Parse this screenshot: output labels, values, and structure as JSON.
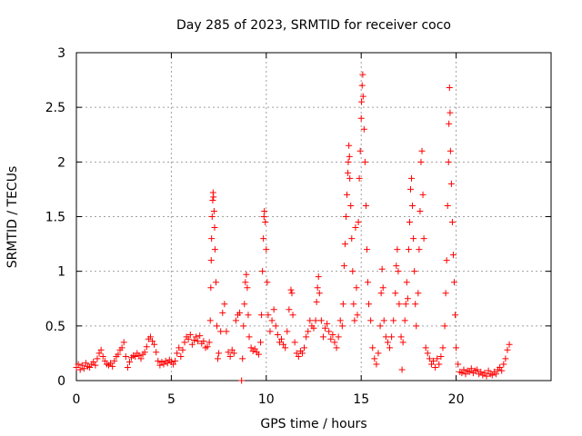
{
  "chart_data": {
    "type": "scatter",
    "title": "Day 285 of 2023, SRMTID for receiver coco",
    "xlabel": "GPS time / hours",
    "ylabel": "SRMTID / TECUs",
    "xlim": [
      0,
      25
    ],
    "ylim": [
      0,
      3
    ],
    "xticks": [
      0,
      5,
      10,
      15,
      20
    ],
    "yticks": [
      0,
      0.5,
      1,
      1.5,
      2,
      2.5,
      3
    ],
    "xtick_labels": [
      "0",
      "5",
      "10",
      "15",
      "20"
    ],
    "ytick_labels": [
      "0",
      "0.5",
      "1",
      "1.5",
      "2",
      "2.5",
      "3"
    ],
    "grid": true,
    "marker": "plus",
    "color": "#ff0000",
    "series": [
      {
        "name": "SRMTID",
        "points": [
          [
            0.0,
            0.12
          ],
          [
            0.1,
            0.15
          ],
          [
            0.2,
            0.1
          ],
          [
            0.3,
            0.14
          ],
          [
            0.4,
            0.11
          ],
          [
            0.5,
            0.16
          ],
          [
            0.6,
            0.13
          ],
          [
            0.7,
            0.12
          ],
          [
            0.8,
            0.15
          ],
          [
            0.9,
            0.17
          ],
          [
            1.0,
            0.14
          ],
          [
            1.1,
            0.2
          ],
          [
            1.2,
            0.25
          ],
          [
            1.3,
            0.28
          ],
          [
            1.4,
            0.22
          ],
          [
            1.5,
            0.18
          ],
          [
            1.6,
            0.15
          ],
          [
            1.7,
            0.14
          ],
          [
            1.8,
            0.16
          ],
          [
            1.9,
            0.13
          ],
          [
            2.0,
            0.18
          ],
          [
            2.1,
            0.22
          ],
          [
            2.2,
            0.24
          ],
          [
            2.3,
            0.28
          ],
          [
            2.4,
            0.3
          ],
          [
            2.5,
            0.35
          ],
          [
            2.6,
            0.22
          ],
          [
            2.7,
            0.12
          ],
          [
            2.8,
            0.17
          ],
          [
            2.9,
            0.21
          ],
          [
            3.0,
            0.23
          ],
          [
            3.1,
            0.22
          ],
          [
            3.2,
            0.25
          ],
          [
            3.3,
            0.23
          ],
          [
            3.4,
            0.2
          ],
          [
            3.5,
            0.24
          ],
          [
            3.6,
            0.26
          ],
          [
            3.7,
            0.31
          ],
          [
            3.8,
            0.38
          ],
          [
            3.9,
            0.4
          ],
          [
            4.0,
            0.36
          ],
          [
            4.1,
            0.33
          ],
          [
            4.2,
            0.26
          ],
          [
            4.3,
            0.18
          ],
          [
            4.4,
            0.14
          ],
          [
            4.5,
            0.17
          ],
          [
            4.6,
            0.15
          ],
          [
            4.7,
            0.18
          ],
          [
            4.8,
            0.16
          ],
          [
            4.9,
            0.19
          ],
          [
            5.0,
            0.17
          ],
          [
            5.1,
            0.15
          ],
          [
            5.2,
            0.18
          ],
          [
            5.3,
            0.25
          ],
          [
            5.4,
            0.3
          ],
          [
            5.5,
            0.22
          ],
          [
            5.6,
            0.28
          ],
          [
            5.7,
            0.35
          ],
          [
            5.8,
            0.4
          ],
          [
            5.9,
            0.38
          ],
          [
            6.0,
            0.42
          ],
          [
            6.1,
            0.33
          ],
          [
            6.2,
            0.37
          ],
          [
            6.3,
            0.4
          ],
          [
            6.4,
            0.36
          ],
          [
            6.5,
            0.41
          ],
          [
            6.6,
            0.34
          ],
          [
            6.7,
            0.36
          ],
          [
            6.8,
            0.3
          ],
          [
            6.9,
            0.31
          ],
          [
            7.0,
            0.35
          ],
          [
            7.05,
            0.55
          ],
          [
            7.08,
            0.85
          ],
          [
            7.1,
            1.1
          ],
          [
            7.12,
            1.3
          ],
          [
            7.15,
            1.5
          ],
          [
            7.18,
            1.65
          ],
          [
            7.2,
            1.72
          ],
          [
            7.22,
            1.68
          ],
          [
            7.25,
            1.55
          ],
          [
            7.28,
            1.4
          ],
          [
            7.3,
            1.2
          ],
          [
            7.35,
            0.9
          ],
          [
            7.4,
            0.5
          ],
          [
            7.45,
            0.2
          ],
          [
            7.5,
            0.25
          ],
          [
            7.6,
            0.45
          ],
          [
            7.7,
            0.62
          ],
          [
            7.8,
            0.7
          ],
          [
            7.9,
            0.45
          ],
          [
            8.0,
            0.26
          ],
          [
            8.1,
            0.22
          ],
          [
            8.2,
            0.28
          ],
          [
            8.3,
            0.25
          ],
          [
            8.4,
            0.55
          ],
          [
            8.5,
            0.6
          ],
          [
            8.6,
            0.62
          ],
          [
            8.7,
            0.0
          ],
          [
            8.75,
            0.2
          ],
          [
            8.8,
            0.5
          ],
          [
            8.85,
            0.7
          ],
          [
            8.9,
            0.9
          ],
          [
            8.95,
            0.97
          ],
          [
            9.0,
            0.85
          ],
          [
            9.05,
            0.6
          ],
          [
            9.1,
            0.4
          ],
          [
            9.2,
            0.3
          ],
          [
            9.3,
            0.27
          ],
          [
            9.4,
            0.29
          ],
          [
            9.5,
            0.26
          ],
          [
            9.6,
            0.24
          ],
          [
            9.7,
            0.35
          ],
          [
            9.75,
            0.6
          ],
          [
            9.8,
            1.0
          ],
          [
            9.85,
            1.3
          ],
          [
            9.88,
            1.5
          ],
          [
            9.9,
            1.55
          ],
          [
            9.95,
            1.45
          ],
          [
            10.0,
            1.2
          ],
          [
            10.05,
            0.9
          ],
          [
            10.1,
            0.6
          ],
          [
            10.2,
            0.45
          ],
          [
            10.3,
            0.55
          ],
          [
            10.4,
            0.65
          ],
          [
            10.5,
            0.5
          ],
          [
            10.6,
            0.42
          ],
          [
            10.7,
            0.35
          ],
          [
            10.8,
            0.38
          ],
          [
            10.9,
            0.33
          ],
          [
            11.0,
            0.3
          ],
          [
            11.1,
            0.45
          ],
          [
            11.2,
            0.65
          ],
          [
            11.3,
            0.83
          ],
          [
            11.35,
            0.8
          ],
          [
            11.4,
            0.6
          ],
          [
            11.5,
            0.35
          ],
          [
            11.6,
            0.25
          ],
          [
            11.7,
            0.22
          ],
          [
            11.8,
            0.27
          ],
          [
            11.9,
            0.25
          ],
          [
            12.0,
            0.3
          ],
          [
            12.1,
            0.4
          ],
          [
            12.2,
            0.45
          ],
          [
            12.3,
            0.55
          ],
          [
            12.4,
            0.5
          ],
          [
            12.5,
            0.48
          ],
          [
            12.6,
            0.55
          ],
          [
            12.65,
            0.72
          ],
          [
            12.7,
            0.85
          ],
          [
            12.75,
            0.95
          ],
          [
            12.8,
            0.8
          ],
          [
            12.9,
            0.55
          ],
          [
            13.0,
            0.4
          ],
          [
            13.1,
            0.48
          ],
          [
            13.2,
            0.52
          ],
          [
            13.3,
            0.45
          ],
          [
            13.4,
            0.38
          ],
          [
            13.5,
            0.42
          ],
          [
            13.6,
            0.35
          ],
          [
            13.7,
            0.3
          ],
          [
            13.8,
            0.4
          ],
          [
            13.9,
            0.55
          ],
          [
            14.0,
            0.5
          ],
          [
            14.05,
            0.7
          ],
          [
            14.1,
            1.05
          ],
          [
            14.15,
            1.25
          ],
          [
            14.2,
            1.5
          ],
          [
            14.25,
            1.7
          ],
          [
            14.3,
            1.9
          ],
          [
            14.32,
            2.0
          ],
          [
            14.35,
            2.15
          ],
          [
            14.38,
            2.05
          ],
          [
            14.4,
            1.85
          ],
          [
            14.45,
            1.6
          ],
          [
            14.5,
            1.3
          ],
          [
            14.55,
            1.0
          ],
          [
            14.6,
            0.7
          ],
          [
            14.65,
            0.55
          ],
          [
            14.7,
            1.4
          ],
          [
            14.75,
            0.85
          ],
          [
            14.8,
            0.6
          ],
          [
            14.85,
            1.45
          ],
          [
            14.9,
            1.85
          ],
          [
            14.95,
            2.1
          ],
          [
            15.0,
            2.4
          ],
          [
            15.02,
            2.55
          ],
          [
            15.05,
            2.7
          ],
          [
            15.08,
            2.8
          ],
          [
            15.1,
            2.6
          ],
          [
            15.15,
            2.3
          ],
          [
            15.2,
            2.0
          ],
          [
            15.25,
            1.6
          ],
          [
            15.3,
            1.2
          ],
          [
            15.35,
            0.9
          ],
          [
            15.4,
            0.7
          ],
          [
            15.5,
            0.55
          ],
          [
            15.6,
            0.3
          ],
          [
            15.7,
            0.2
          ],
          [
            15.8,
            0.15
          ],
          [
            15.9,
            0.25
          ],
          [
            16.0,
            0.5
          ],
          [
            16.05,
            0.8
          ],
          [
            16.1,
            1.02
          ],
          [
            16.15,
            0.85
          ],
          [
            16.2,
            0.55
          ],
          [
            16.3,
            0.4
          ],
          [
            16.4,
            0.35
          ],
          [
            16.5,
            0.3
          ],
          [
            16.6,
            0.4
          ],
          [
            16.7,
            0.55
          ],
          [
            16.8,
            0.8
          ],
          [
            16.85,
            1.05
          ],
          [
            16.9,
            1.2
          ],
          [
            16.95,
            1.0
          ],
          [
            17.0,
            0.7
          ],
          [
            17.1,
            0.4
          ],
          [
            17.15,
            0.1
          ],
          [
            17.2,
            0.35
          ],
          [
            17.3,
            0.55
          ],
          [
            17.35,
            0.7
          ],
          [
            17.4,
            0.9
          ],
          [
            17.45,
            0.75
          ],
          [
            17.5,
            1.2
          ],
          [
            17.55,
            1.45
          ],
          [
            17.6,
            1.75
          ],
          [
            17.65,
            1.85
          ],
          [
            17.7,
            1.6
          ],
          [
            17.75,
            1.3
          ],
          [
            17.8,
            1.0
          ],
          [
            17.85,
            0.7
          ],
          [
            17.9,
            0.5
          ],
          [
            18.0,
            0.8
          ],
          [
            18.05,
            1.2
          ],
          [
            18.1,
            1.55
          ],
          [
            18.15,
            2.0
          ],
          [
            18.2,
            2.1
          ],
          [
            18.25,
            1.7
          ],
          [
            18.3,
            1.3
          ],
          [
            18.4,
            0.3
          ],
          [
            18.5,
            0.25
          ],
          [
            18.6,
            0.2
          ],
          [
            18.7,
            0.15
          ],
          [
            18.8,
            0.18
          ],
          [
            18.9,
            0.12
          ],
          [
            19.0,
            0.2
          ],
          [
            19.1,
            0.15
          ],
          [
            19.2,
            0.22
          ],
          [
            19.3,
            0.3
          ],
          [
            19.4,
            0.5
          ],
          [
            19.45,
            0.8
          ],
          [
            19.5,
            1.1
          ],
          [
            19.55,
            1.6
          ],
          [
            19.6,
            2.0
          ],
          [
            19.62,
            2.35
          ],
          [
            19.65,
            2.68
          ],
          [
            19.68,
            2.45
          ],
          [
            19.7,
            2.1
          ],
          [
            19.75,
            1.8
          ],
          [
            19.8,
            1.45
          ],
          [
            19.85,
            1.15
          ],
          [
            19.9,
            0.9
          ],
          [
            19.95,
            0.6
          ],
          [
            20.0,
            0.3
          ],
          [
            20.1,
            0.15
          ],
          [
            20.2,
            0.08
          ],
          [
            20.3,
            0.07
          ],
          [
            20.4,
            0.1
          ],
          [
            20.5,
            0.06
          ],
          [
            20.6,
            0.09
          ],
          [
            20.7,
            0.08
          ],
          [
            20.8,
            0.11
          ],
          [
            20.9,
            0.07
          ],
          [
            21.0,
            0.09
          ],
          [
            21.1,
            0.1
          ],
          [
            21.2,
            0.06
          ],
          [
            21.3,
            0.08
          ],
          [
            21.4,
            0.05
          ],
          [
            21.5,
            0.07
          ],
          [
            21.6,
            0.04
          ],
          [
            21.7,
            0.09
          ],
          [
            21.8,
            0.06
          ],
          [
            21.9,
            0.05
          ],
          [
            22.0,
            0.08
          ],
          [
            22.1,
            0.06
          ],
          [
            22.2,
            0.1
          ],
          [
            22.3,
            0.12
          ],
          [
            22.4,
            0.09
          ],
          [
            22.5,
            0.15
          ],
          [
            22.6,
            0.2
          ],
          [
            22.7,
            0.28
          ],
          [
            22.8,
            0.33
          ]
        ]
      }
    ]
  }
}
